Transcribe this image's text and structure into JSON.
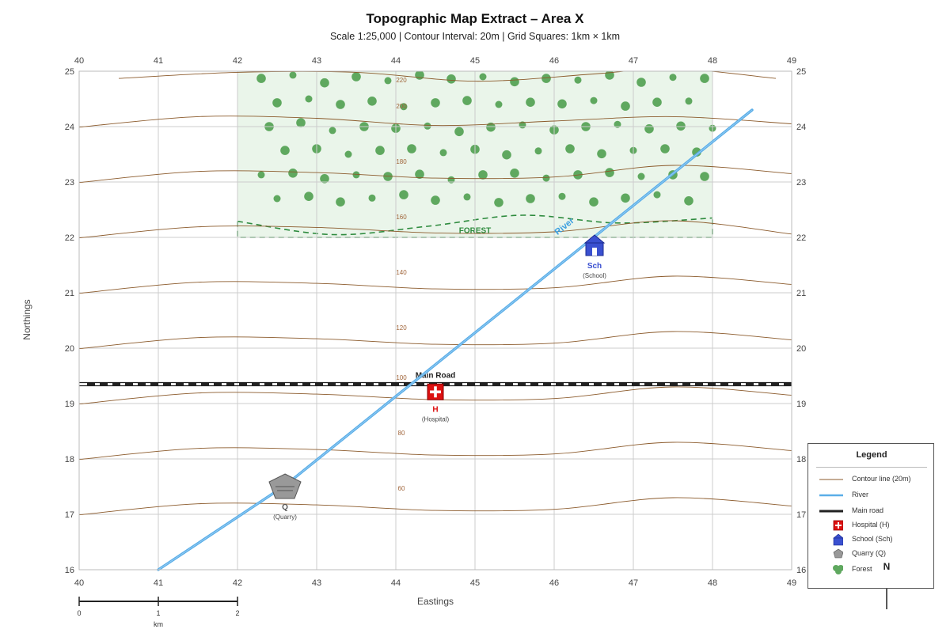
{
  "title": "Topographic Map Extract – Area X",
  "subtitle": "Scale 1:25,000 | Contour Interval: 20m | Grid Squares: 1km × 1km",
  "axes": {
    "xlabel": "Eastings",
    "ylabel": "Northings",
    "eastings": [
      "40",
      "41",
      "42",
      "43",
      "44",
      "45",
      "46",
      "47",
      "48",
      "49"
    ],
    "northings": [
      "16",
      "17",
      "18",
      "19",
      "20",
      "21",
      "22",
      "23",
      "24",
      "25"
    ],
    "xlim": [
      40,
      49
    ],
    "ylim": [
      16,
      25
    ]
  },
  "scale_bar": {
    "ticks": [
      "0",
      "1",
      "2"
    ],
    "unit": "km"
  },
  "features": {
    "forest_label": "FOREST",
    "river_label": "River",
    "road_label": "Main Road",
    "hospital_code": "H",
    "hospital_name": "(Hospital)",
    "school_code": "Sch",
    "school_name": "(School)",
    "quarry_code": "Q",
    "quarry_name": "(Quarry)"
  },
  "legend": {
    "title": "Legend",
    "items": [
      {
        "label": "Contour line (20m)",
        "symbol": "contour-line-icon"
      },
      {
        "label": "River",
        "symbol": "river-line-icon"
      },
      {
        "label": "Main road",
        "symbol": "road-line-icon"
      },
      {
        "label": "Hospital (H)",
        "symbol": "hospital-icon"
      },
      {
        "label": "School (Sch)",
        "symbol": "school-icon"
      },
      {
        "label": "Quarry (Q)",
        "symbol": "quarry-icon"
      },
      {
        "label": "Forest",
        "symbol": "forest-icon"
      }
    ],
    "north": "N"
  },
  "colors": {
    "contour": "#8B5A2B",
    "river": "#5aaee8",
    "road": "#222222",
    "hospital": "#dd1111",
    "school": "#3a50d0",
    "quarry": "#999999",
    "forest_fill": "#eaf5ea",
    "forest_tree": "#5fa85f",
    "forest_border": "#2e8b3e",
    "grid": "#cccccc"
  },
  "chart_data": {
    "type": "map",
    "xlim": [
      40,
      49
    ],
    "ylim": [
      16,
      25
    ],
    "contours": [
      {
        "elevation": "220",
        "label_at": [
          44.07,
          24.8
        ],
        "points": [
          [
            40.5,
            24.87
          ],
          [
            42,
            24.98
          ],
          [
            43.5,
            24.98
          ],
          [
            45,
            24.82
          ],
          [
            46.5,
            24.95
          ],
          [
            47.5,
            25.05
          ],
          [
            48.8,
            24.87
          ]
        ]
      },
      {
        "elevation": "200",
        "label_at": [
          44.07,
          24.33
        ],
        "points": [
          [
            40,
            23.99
          ],
          [
            41.5,
            24.18
          ],
          [
            43,
            24.15
          ],
          [
            44.5,
            24.02
          ],
          [
            46,
            24.1
          ],
          [
            47.5,
            24.18
          ],
          [
            49,
            24.05
          ]
        ]
      },
      {
        "elevation": "180",
        "label_at": [
          44.07,
          23.33
        ],
        "points": [
          [
            40,
            22.99
          ],
          [
            41.5,
            23.19
          ],
          [
            43,
            23.17
          ],
          [
            44.5,
            23.07
          ],
          [
            46,
            23.09
          ],
          [
            47.5,
            23.3
          ],
          [
            49,
            23.15
          ]
        ]
      },
      {
        "elevation": "160",
        "label_at": [
          44.07,
          22.33
        ],
        "points": [
          [
            40,
            21.99
          ],
          [
            41.5,
            22.19
          ],
          [
            43,
            22.18
          ],
          [
            44.5,
            22.08
          ],
          [
            46,
            22.1
          ],
          [
            47.5,
            22.3
          ],
          [
            49,
            22.06
          ]
        ]
      },
      {
        "elevation": "140",
        "label_at": [
          44.07,
          21.33
        ],
        "points": [
          [
            40,
            20.99
          ],
          [
            41.5,
            21.19
          ],
          [
            43,
            21.17
          ],
          [
            44.5,
            21.07
          ],
          [
            46,
            21.09
          ],
          [
            47.5,
            21.3
          ],
          [
            49,
            21.15
          ]
        ]
      },
      {
        "elevation": "120",
        "label_at": [
          44.07,
          20.33
        ],
        "points": [
          [
            40,
            19.99
          ],
          [
            41.5,
            20.19
          ],
          [
            43,
            20.17
          ],
          [
            44.5,
            20.07
          ],
          [
            46,
            20.09
          ],
          [
            47.5,
            20.3
          ],
          [
            49,
            20.15
          ]
        ]
      },
      {
        "elevation": "100",
        "label_at": [
          44.07,
          19.43
        ],
        "points": [
          [
            40,
            18.99
          ],
          [
            41.5,
            19.19
          ],
          [
            43,
            19.17
          ],
          [
            44.5,
            19.07
          ],
          [
            46,
            19.09
          ],
          [
            47.5,
            19.3
          ],
          [
            49,
            19.15
          ]
        ]
      },
      {
        "elevation": "80",
        "label_at": [
          44.07,
          18.43
        ],
        "points": [
          [
            40,
            17.99
          ],
          [
            41.5,
            18.19
          ],
          [
            43,
            18.17
          ],
          [
            44.5,
            18.07
          ],
          [
            46,
            18.09
          ],
          [
            47.5,
            18.3
          ],
          [
            49,
            18.15
          ]
        ]
      },
      {
        "elevation": "60",
        "label_at": [
          44.07,
          17.43
        ],
        "points": [
          [
            40,
            16.99
          ],
          [
            41.5,
            17.19
          ],
          [
            43,
            17.17
          ],
          [
            44.5,
            17.07
          ],
          [
            46,
            17.09
          ],
          [
            47.5,
            17.3
          ],
          [
            49,
            17.15
          ]
        ]
      }
    ],
    "river": {
      "points": [
        [
          41,
          16
        ],
        [
          42.6,
          17.52
        ],
        [
          48.5,
          24.3
        ]
      ],
      "label_at": [
        46.15,
        22.16
      ]
    },
    "road": {
      "y": 19.35,
      "x": [
        40,
        49
      ]
    },
    "forest": {
      "x": [
        42,
        48
      ],
      "y": [
        22,
        25
      ],
      "boundary_y": [
        22.29,
        22.05,
        22.2,
        22.4,
        22.26,
        22.35
      ]
    },
    "trees": [
      [
        42.3,
        24.87
      ],
      [
        42.7,
        24.93
      ],
      [
        43.1,
        24.79
      ],
      [
        43.5,
        24.9
      ],
      [
        43.9,
        24.83
      ],
      [
        44.3,
        24.93
      ],
      [
        44.7,
        24.86
      ],
      [
        45.1,
        24.9
      ],
      [
        45.5,
        24.81
      ],
      [
        45.9,
        24.87
      ],
      [
        46.3,
        24.84
      ],
      [
        46.7,
        24.93
      ],
      [
        47.1,
        24.8
      ],
      [
        47.5,
        24.89
      ],
      [
        47.9,
        24.87
      ],
      [
        42.5,
        24.43
      ],
      [
        42.9,
        24.5
      ],
      [
        43.3,
        24.4
      ],
      [
        43.7,
        24.46
      ],
      [
        44.1,
        24.36
      ],
      [
        44.5,
        24.43
      ],
      [
        44.9,
        24.47
      ],
      [
        45.3,
        24.4
      ],
      [
        45.7,
        24.44
      ],
      [
        46.1,
        24.41
      ],
      [
        46.5,
        24.47
      ],
      [
        46.9,
        24.37
      ],
      [
        47.3,
        24.44
      ],
      [
        47.7,
        24.46
      ],
      [
        42.4,
        24.0
      ],
      [
        42.8,
        24.07
      ],
      [
        43.2,
        23.93
      ],
      [
        43.6,
        24.0
      ],
      [
        44.0,
        23.97
      ],
      [
        44.4,
        24.01
      ],
      [
        44.8,
        23.91
      ],
      [
        45.2,
        23.99
      ],
      [
        45.6,
        24.03
      ],
      [
        46.0,
        23.94
      ],
      [
        46.4,
        24.0
      ],
      [
        46.8,
        24.04
      ],
      [
        47.2,
        23.96
      ],
      [
        47.6,
        24.01
      ],
      [
        48.0,
        23.97
      ],
      [
        42.6,
        23.57
      ],
      [
        43.0,
        23.6
      ],
      [
        43.4,
        23.5
      ],
      [
        43.8,
        23.57
      ],
      [
        44.2,
        23.6
      ],
      [
        44.6,
        23.53
      ],
      [
        45.0,
        23.59
      ],
      [
        45.4,
        23.49
      ],
      [
        45.8,
        23.56
      ],
      [
        46.2,
        23.6
      ],
      [
        46.6,
        23.51
      ],
      [
        47.0,
        23.57
      ],
      [
        47.4,
        23.6
      ],
      [
        47.8,
        23.54
      ],
      [
        42.3,
        23.13
      ],
      [
        42.7,
        23.16
      ],
      [
        43.1,
        23.06
      ],
      [
        43.5,
        23.13
      ],
      [
        43.9,
        23.1
      ],
      [
        44.3,
        23.14
      ],
      [
        44.7,
        23.04
      ],
      [
        45.1,
        23.13
      ],
      [
        45.5,
        23.16
      ],
      [
        45.9,
        23.07
      ],
      [
        46.3,
        23.13
      ],
      [
        46.7,
        23.17
      ],
      [
        47.1,
        23.1
      ],
      [
        47.5,
        23.13
      ],
      [
        47.9,
        23.1
      ],
      [
        42.5,
        22.7
      ],
      [
        42.9,
        22.74
      ],
      [
        43.3,
        22.64
      ],
      [
        43.7,
        22.71
      ],
      [
        44.1,
        22.77
      ],
      [
        44.5,
        22.67
      ],
      [
        44.9,
        22.73
      ],
      [
        45.3,
        22.63
      ],
      [
        45.7,
        22.7
      ],
      [
        46.1,
        22.74
      ],
      [
        46.5,
        22.64
      ],
      [
        46.9,
        22.71
      ],
      [
        47.3,
        22.77
      ],
      [
        47.7,
        22.66
      ]
    ],
    "points_of_interest": [
      {
        "code": "H",
        "name": "(Hospital)",
        "x": 44.5,
        "y": 19.21
      },
      {
        "code": "Sch",
        "name": "(School)",
        "x": 46.51,
        "y": 21.9
      },
      {
        "code": "Q",
        "name": "(Quarry)",
        "x": 42.6,
        "y": 17.5
      }
    ]
  }
}
